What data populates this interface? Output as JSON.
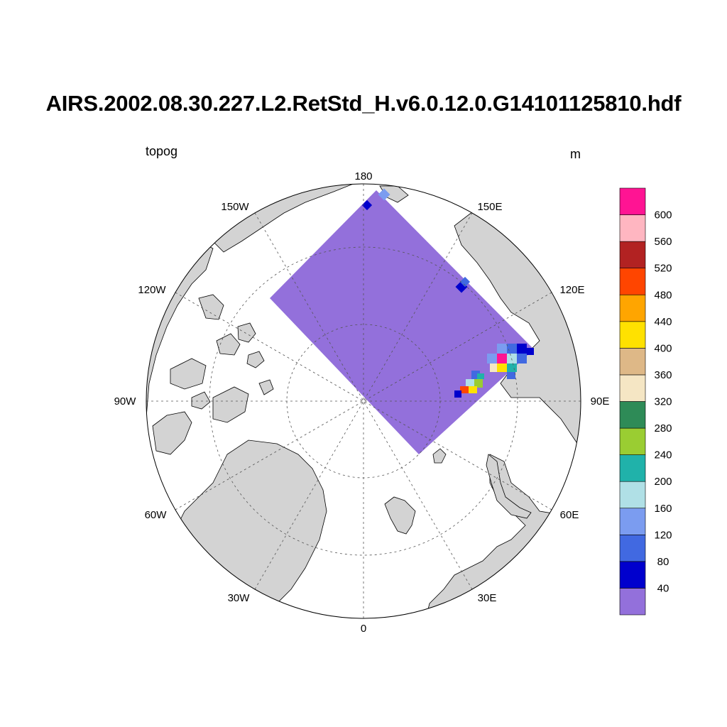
{
  "title": "AIRS.2002.08.30.227.L2.RetStd_H.v6.0.12.0.G14101125810.hdf",
  "variable_label": "topog",
  "units_label": "m",
  "map": {
    "projection": "north polar stereographic",
    "longitude_labels": [
      "180",
      "150E",
      "120E",
      "90E",
      "60E",
      "30E",
      "0",
      "30W",
      "60W",
      "90W",
      "120W",
      "150W"
    ],
    "colors": {
      "land": "#d3d3d3",
      "ocean": "#ffffff",
      "swath": "#9370db",
      "grid": "#555555"
    }
  },
  "colorbar": {
    "levels": [
      "40",
      "80",
      "120",
      "160",
      "200",
      "240",
      "280",
      "320",
      "360",
      "400",
      "440",
      "480",
      "520",
      "560",
      "600"
    ],
    "colors": [
      "#9370db",
      "#0000cd",
      "#4169e1",
      "#7b9cf0",
      "#b0e0e6",
      "#20b2aa",
      "#9acd32",
      "#2e8b57",
      "#f5e6c4",
      "#deb887",
      "#ffe100",
      "#ffa500",
      "#ff4500",
      "#b22222",
      "#ffb6c1",
      "#ff1493"
    ]
  }
}
